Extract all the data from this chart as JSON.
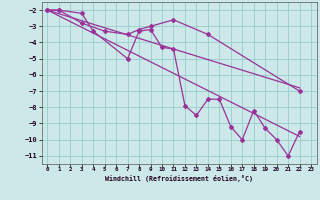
{
  "xlabel": "Windchill (Refroidissement éolien,°C)",
  "background_color": "#cce8e8",
  "grid_color": "#99cccc",
  "line_color": "#993399",
  "xlim": [
    -0.5,
    23.5
  ],
  "ylim": [
    -11.5,
    -1.5
  ],
  "xticks": [
    0,
    1,
    2,
    3,
    4,
    5,
    6,
    7,
    8,
    9,
    10,
    11,
    12,
    13,
    14,
    15,
    16,
    17,
    18,
    19,
    20,
    21,
    22,
    23
  ],
  "yticks": [
    -2,
    -3,
    -4,
    -5,
    -6,
    -7,
    -8,
    -9,
    -10,
    -11
  ],
  "series1_x": [
    0,
    1,
    3,
    4,
    7,
    8,
    9,
    10,
    11,
    12,
    13,
    14,
    15,
    16,
    17,
    18,
    19,
    20,
    21,
    22
  ],
  "series1_y": [
    -2,
    -2,
    -2.2,
    -3.3,
    -5.0,
    -3.3,
    -3.2,
    -4.3,
    -4.4,
    -7.9,
    -8.5,
    -7.5,
    -7.5,
    -9.2,
    -10.0,
    -8.2,
    -9.3,
    -10.0,
    -11.0,
    -9.5
  ],
  "series2_x": [
    0,
    1,
    3,
    5,
    7,
    8,
    9,
    11,
    14,
    22
  ],
  "series2_y": [
    -2,
    -2,
    -2.8,
    -3.3,
    -3.5,
    -3.2,
    -3.0,
    -2.6,
    -3.5,
    -7.0
  ],
  "series3_x": [
    0,
    22
  ],
  "series3_y": [
    -2,
    -6.8
  ],
  "series4_x": [
    0,
    22
  ],
  "series4_y": [
    -2,
    -9.8
  ]
}
